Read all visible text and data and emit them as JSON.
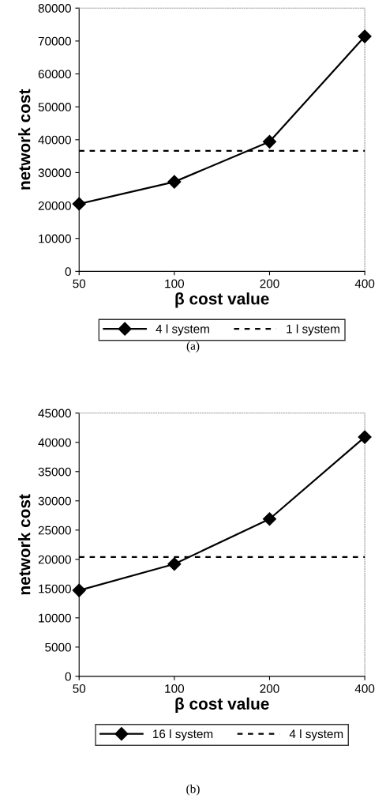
{
  "chart_data": [
    {
      "type": "line",
      "xlabel": "β cost value",
      "ylabel": "network cost",
      "categories": [
        "50",
        "100",
        "200",
        "400"
      ],
      "ylim": [
        0,
        80000
      ],
      "yticks": [
        0,
        10000,
        20000,
        30000,
        40000,
        50000,
        60000,
        70000,
        80000
      ],
      "grid": false,
      "legend": "bottom",
      "annotations": [
        "(a)"
      ],
      "series": [
        {
          "name": "4 l system",
          "color": "#000000",
          "values": [
            20500,
            27200,
            39400,
            71400
          ],
          "marker": "diamond",
          "line_style": "solid"
        },
        {
          "name": "1 l system",
          "color": "#000000",
          "values": [
            36600,
            36600,
            36600,
            36600
          ],
          "marker": "none",
          "line_style": "dashed"
        }
      ]
    },
    {
      "type": "line",
      "xlabel": "β cost value",
      "ylabel": "network cost",
      "categories": [
        "50",
        "100",
        "200",
        "400"
      ],
      "ylim": [
        0,
        45000
      ],
      "yticks": [
        0,
        5000,
        10000,
        15000,
        20000,
        25000,
        30000,
        35000,
        40000,
        45000
      ],
      "grid": false,
      "legend": "bottom",
      "annotations": [
        "(b)"
      ],
      "series": [
        {
          "name": "16 l system",
          "color": "#000000",
          "values": [
            14700,
            19200,
            26900,
            40900
          ],
          "marker": "diamond",
          "line_style": "solid"
        },
        {
          "name": "4 l system",
          "color": "#000000",
          "values": [
            20400,
            20400,
            20400,
            20400
          ],
          "marker": "none",
          "line_style": "dashed"
        }
      ]
    }
  ]
}
